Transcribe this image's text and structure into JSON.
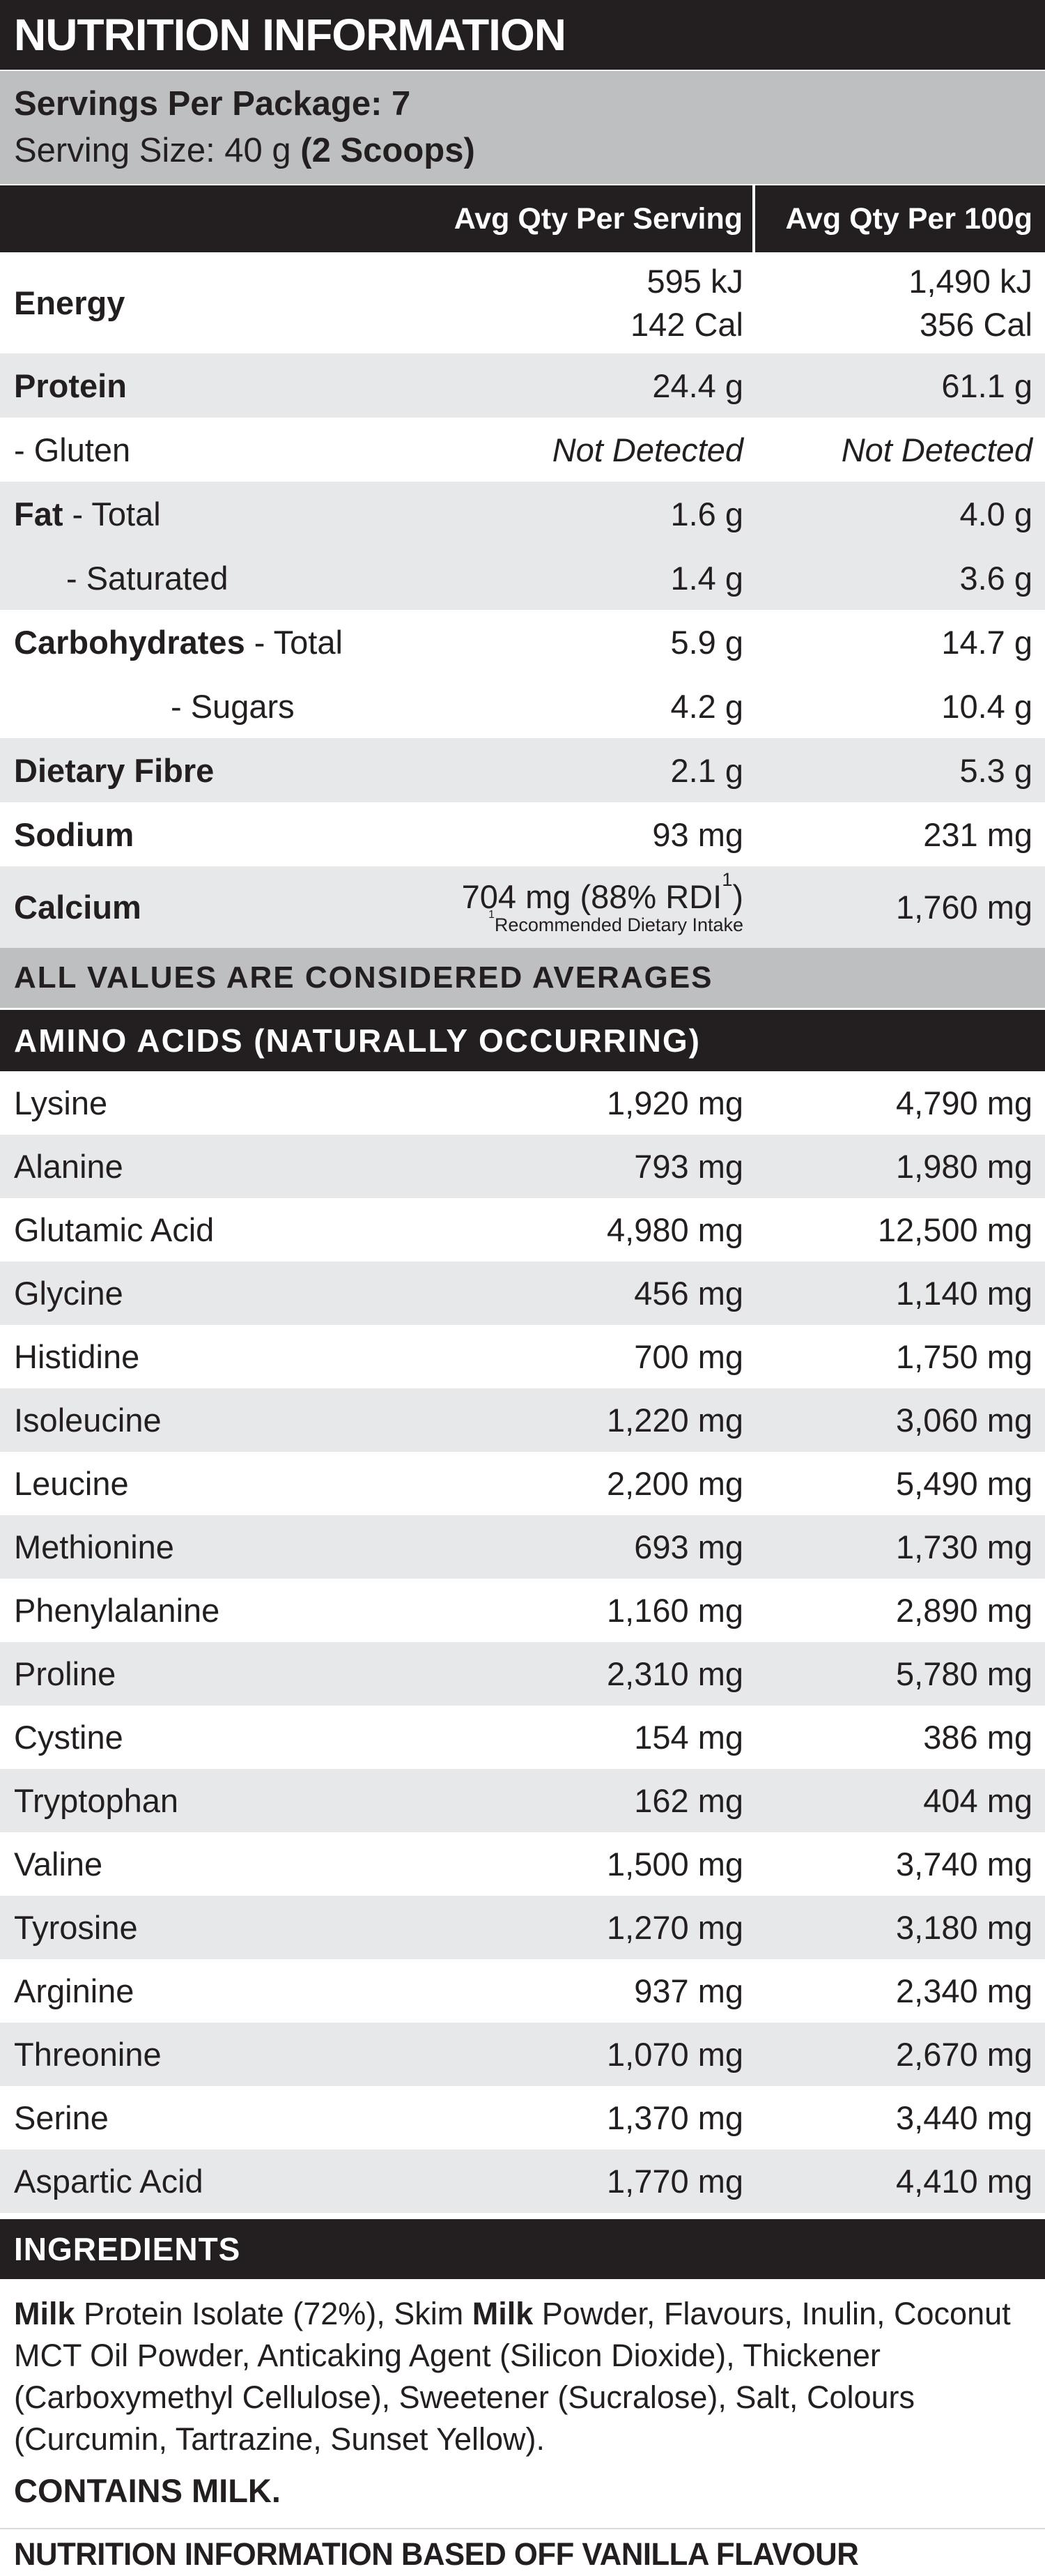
{
  "title": "NUTRITION INFORMATION",
  "servings": {
    "per_package": "Servings Per Package: 7",
    "size_label": "Serving Size: 40 g ",
    "size_bold": "(2 Scoops)"
  },
  "columns": {
    "per_serving": "Avg Qty Per Serving",
    "per_100g": "Avg Qty Per 100g"
  },
  "nutrition_rows": [
    {
      "label_bold": "Energy",
      "label_rest": "",
      "per_serving_lines": [
        "595 kJ",
        "142 Cal"
      ],
      "per_100g_lines": [
        "1,490 kJ",
        "356 Cal"
      ]
    },
    {
      "label_bold": "Protein",
      "label_rest": "",
      "per_serving": "24.4 g",
      "per_100g": "61.1 g"
    },
    {
      "label_bold": "",
      "label_rest": "- Gluten",
      "per_serving": "Not Detected",
      "per_100g": "Not Detected"
    },
    {
      "label_bold": "Fat",
      "label_rest": " - Total",
      "per_serving": "1.6 g",
      "per_100g": "4.0 g"
    },
    {
      "label_bold": "",
      "label_rest": "- Saturated",
      "per_serving": "1.4 g",
      "per_100g": "3.6 g"
    },
    {
      "label_bold": "Carbohydrates",
      "label_rest": " - Total",
      "per_serving": "5.9 g",
      "per_100g": "14.7 g"
    },
    {
      "label_bold": "",
      "label_rest": "- Sugars",
      "per_serving": "4.2 g",
      "per_100g": "10.4 g"
    },
    {
      "label_bold": "Dietary Fibre",
      "label_rest": "",
      "per_serving": "2.1 g",
      "per_100g": "5.3 g"
    },
    {
      "label_bold": "Sodium",
      "label_rest": "",
      "per_serving": "93 mg",
      "per_100g": "231 mg"
    },
    {
      "label_bold": "Calcium",
      "label_rest": "",
      "per_serving_main": "704 mg (88% RDI",
      "per_serving_sup": "1",
      "per_serving_close": ")",
      "footnote_sup": "1",
      "footnote": "Recommended Dietary Intake",
      "per_100g": "1,760 mg"
    }
  ],
  "averages_note": "ALL VALUES ARE CONSIDERED AVERAGES",
  "amino_header": "AMINO ACIDS (NATURALLY OCCURRING)",
  "amino_rows": [
    {
      "name": "Lysine",
      "per_serving": "1,920 mg",
      "per_100g": "4,790 mg"
    },
    {
      "name": "Alanine",
      "per_serving": "793 mg",
      "per_100g": "1,980 mg"
    },
    {
      "name": "Glutamic Acid",
      "per_serving": "4,980 mg",
      "per_100g": "12,500 mg"
    },
    {
      "name": "Glycine",
      "per_serving": "456 mg",
      "per_100g": "1,140 mg"
    },
    {
      "name": "Histidine",
      "per_serving": "700 mg",
      "per_100g": "1,750 mg"
    },
    {
      "name": "Isoleucine",
      "per_serving": "1,220 mg",
      "per_100g": "3,060 mg"
    },
    {
      "name": "Leucine",
      "per_serving": "2,200 mg",
      "per_100g": "5,490 mg"
    },
    {
      "name": "Methionine",
      "per_serving": "693 mg",
      "per_100g": "1,730 mg"
    },
    {
      "name": "Phenylalanine",
      "per_serving": "1,160 mg",
      "per_100g": "2,890 mg"
    },
    {
      "name": "Proline",
      "per_serving": "2,310 mg",
      "per_100g": "5,780 mg"
    },
    {
      "name": "Cystine",
      "per_serving": "154 mg",
      "per_100g": "386 mg"
    },
    {
      "name": "Tryptophan",
      "per_serving": "162 mg",
      "per_100g": "404 mg"
    },
    {
      "name": "Valine",
      "per_serving": "1,500 mg",
      "per_100g": "3,740 mg"
    },
    {
      "name": "Tyrosine",
      "per_serving": "1,270 mg",
      "per_100g": "3,180 mg"
    },
    {
      "name": "Arginine",
      "per_serving": "937 mg",
      "per_100g": "2,340 mg"
    },
    {
      "name": "Threonine",
      "per_serving": "1,070 mg",
      "per_100g": "2,670 mg"
    },
    {
      "name": "Serine",
      "per_serving": "1,370 mg",
      "per_100g": "3,440 mg"
    },
    {
      "name": "Aspartic Acid",
      "per_serving": "1,770 mg",
      "per_100g": "4,410 mg"
    }
  ],
  "ingredients": {
    "header": "INGREDIENTS",
    "segments": [
      {
        "text": "Milk",
        "bold": true
      },
      {
        "text": " Protein Isolate (72%), Skim ",
        "bold": false
      },
      {
        "text": "Milk",
        "bold": true
      },
      {
        "text": " Powder, Flavours, Inulin, Coconut MCT Oil Powder, Anticaking Agent (Silicon Dioxide), Thickener (Carboxymethyl Cellulose), Sweetener (Sucralose), Salt, Colours (Curcumin, Tartrazine, Sunset Yellow).",
        "bold": false
      }
    ],
    "contains": "CONTAINS MILK."
  },
  "footer_note": "NUTRITION INFORMATION BASED OFF VANILLA FLAVOUR",
  "colors": {
    "black": "#231f20",
    "band_grey": "#bdbfc1",
    "row_shade": "#e7e8e9",
    "rule_grey": "#d9dadb"
  }
}
